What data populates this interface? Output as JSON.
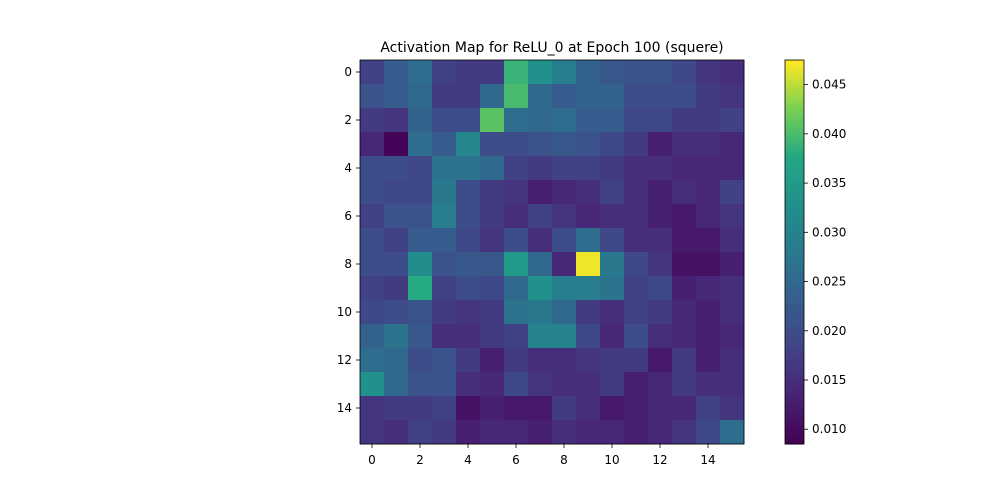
{
  "chart_data": {
    "type": "heatmap",
    "title": "Activation Map for ReLU_0 at Epoch 100 (squere)",
    "xlabel": "",
    "ylabel": "",
    "rows": 16,
    "cols": 16,
    "x_ticks": [
      "0",
      "2",
      "4",
      "6",
      "8",
      "10",
      "12",
      "14"
    ],
    "y_ticks": [
      "0",
      "2",
      "4",
      "6",
      "8",
      "10",
      "12",
      "14"
    ],
    "colormap": "viridis",
    "colorbar": {
      "vmin": 0.0085,
      "vmax": 0.0475,
      "ticks": [
        0.01,
        0.015,
        0.02,
        0.025,
        0.03,
        0.035,
        0.04,
        0.045
      ],
      "tick_labels": [
        "0.010",
        "0.015",
        "0.020",
        "0.025",
        "0.030",
        "0.035",
        "0.040",
        "0.045"
      ]
    },
    "values": [
      [
        0.018,
        0.023,
        0.026,
        0.018,
        0.017,
        0.017,
        0.039,
        0.033,
        0.029,
        0.024,
        0.022,
        0.021,
        0.021,
        0.019,
        0.016,
        0.015
      ],
      [
        0.021,
        0.023,
        0.025,
        0.017,
        0.017,
        0.025,
        0.04,
        0.025,
        0.023,
        0.024,
        0.024,
        0.02,
        0.02,
        0.02,
        0.017,
        0.016
      ],
      [
        0.017,
        0.016,
        0.024,
        0.02,
        0.02,
        0.041,
        0.026,
        0.025,
        0.026,
        0.023,
        0.023,
        0.019,
        0.019,
        0.017,
        0.017,
        0.018
      ],
      [
        0.014,
        0.009,
        0.026,
        0.023,
        0.031,
        0.02,
        0.02,
        0.021,
        0.022,
        0.021,
        0.019,
        0.017,
        0.013,
        0.015,
        0.015,
        0.014
      ],
      [
        0.02,
        0.02,
        0.019,
        0.027,
        0.027,
        0.025,
        0.018,
        0.017,
        0.018,
        0.018,
        0.017,
        0.015,
        0.015,
        0.014,
        0.014,
        0.014
      ],
      [
        0.02,
        0.019,
        0.019,
        0.028,
        0.02,
        0.017,
        0.016,
        0.013,
        0.014,
        0.015,
        0.018,
        0.015,
        0.013,
        0.015,
        0.014,
        0.018
      ],
      [
        0.018,
        0.021,
        0.021,
        0.029,
        0.02,
        0.017,
        0.015,
        0.018,
        0.016,
        0.014,
        0.015,
        0.015,
        0.013,
        0.012,
        0.014,
        0.016
      ],
      [
        0.02,
        0.018,
        0.023,
        0.023,
        0.019,
        0.016,
        0.02,
        0.015,
        0.02,
        0.026,
        0.019,
        0.015,
        0.015,
        0.012,
        0.012,
        0.015
      ],
      [
        0.02,
        0.02,
        0.032,
        0.021,
        0.022,
        0.022,
        0.035,
        0.025,
        0.014,
        0.047,
        0.028,
        0.019,
        0.016,
        0.011,
        0.011,
        0.013
      ],
      [
        0.018,
        0.017,
        0.038,
        0.018,
        0.02,
        0.019,
        0.025,
        0.033,
        0.029,
        0.029,
        0.027,
        0.018,
        0.019,
        0.013,
        0.014,
        0.015
      ],
      [
        0.019,
        0.02,
        0.021,
        0.017,
        0.016,
        0.017,
        0.027,
        0.028,
        0.025,
        0.017,
        0.015,
        0.018,
        0.017,
        0.014,
        0.013,
        0.015
      ],
      [
        0.024,
        0.027,
        0.022,
        0.015,
        0.015,
        0.017,
        0.018,
        0.03,
        0.03,
        0.019,
        0.014,
        0.02,
        0.015,
        0.014,
        0.013,
        0.014
      ],
      [
        0.026,
        0.025,
        0.02,
        0.021,
        0.017,
        0.013,
        0.017,
        0.015,
        0.015,
        0.016,
        0.017,
        0.017,
        0.012,
        0.017,
        0.013,
        0.015
      ],
      [
        0.033,
        0.025,
        0.021,
        0.021,
        0.015,
        0.014,
        0.019,
        0.016,
        0.015,
        0.015,
        0.017,
        0.013,
        0.014,
        0.017,
        0.015,
        0.015
      ],
      [
        0.016,
        0.017,
        0.017,
        0.018,
        0.011,
        0.013,
        0.012,
        0.012,
        0.017,
        0.015,
        0.012,
        0.013,
        0.014,
        0.014,
        0.018,
        0.016
      ],
      [
        0.016,
        0.015,
        0.018,
        0.017,
        0.013,
        0.014,
        0.014,
        0.013,
        0.015,
        0.014,
        0.014,
        0.013,
        0.014,
        0.016,
        0.019,
        0.026
      ]
    ]
  }
}
